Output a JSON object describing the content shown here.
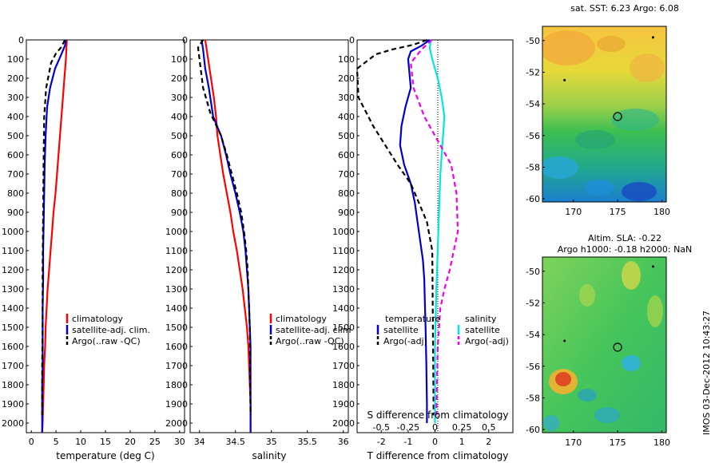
{
  "colors": {
    "climatology": "#ff0000",
    "satellite": "#0000cc",
    "argo": "#000000",
    "satellite_salinity": "#00e5e5",
    "argo_salinity_adj": "#ee00ee"
  },
  "chart_data": [
    {
      "type": "line",
      "id": "temperature",
      "xlabel": "temperature (deg C)",
      "xlim": [
        -1,
        31
      ],
      "ylim": [
        0,
        2050
      ],
      "xticks": [
        "0",
        "5",
        "10",
        "15",
        "20",
        "25",
        "30"
      ],
      "yticks": [
        "0",
        "100",
        "200",
        "300",
        "400",
        "500",
        "600",
        "700",
        "800",
        "900",
        "1000",
        "1100",
        "1200",
        "1300",
        "1400",
        "1500",
        "1600",
        "1700",
        "1800",
        "1900",
        "2000"
      ],
      "legend": [
        "climatology",
        "satellite-adj. clim.",
        "Argo(..raw -QC)"
      ],
      "series": [
        {
          "name": "climatology",
          "style": "solid",
          "color": "#ff0000",
          "x": [
            7.2,
            7.0,
            6.7,
            6.4,
            6.1,
            5.8,
            5.5,
            5.2,
            4.9,
            4.5,
            4.2,
            3.9,
            3.6,
            3.3,
            3.1,
            2.9,
            2.8,
            2.6,
            2.5,
            2.4,
            2.3,
            2.2
          ],
          "y": [
            0,
            100,
            200,
            300,
            400,
            500,
            600,
            700,
            800,
            900,
            1000,
            1100,
            1200,
            1300,
            1400,
            1500,
            1600,
            1700,
            1800,
            1900,
            2000,
            2050
          ]
        },
        {
          "name": "satellite-adj. clim.",
          "style": "solid",
          "color": "#0000cc",
          "x": [
            7.0,
            6.8,
            6.0,
            4.8,
            3.8,
            3.2,
            2.9,
            2.7,
            2.6,
            2.5,
            2.4,
            2.4,
            2.3,
            2.3,
            2.3,
            2.2,
            2.2,
            2.2,
            2.2,
            2.2
          ],
          "y": [
            0,
            30,
            80,
            150,
            250,
            350,
            500,
            650,
            800,
            950,
            1100,
            1250,
            1400,
            1550,
            1700,
            1800,
            1900,
            2000,
            2030,
            2050
          ]
        },
        {
          "name": "Argo(..raw -QC)",
          "style": "dashed",
          "color": "#000000",
          "x": [
            6.8,
            6.0,
            5.0,
            4.0,
            3.0,
            2.6,
            2.5,
            2.4,
            2.3,
            2.3,
            2.2,
            2.2,
            2.2
          ],
          "y": [
            0,
            40,
            70,
            120,
            250,
            400,
            600,
            900,
            1200,
            1500,
            1700,
            1800,
            1960
          ]
        }
      ]
    },
    {
      "type": "line",
      "id": "salinity",
      "xlabel": "salinity",
      "xlim": [
        33.87,
        36.07
      ],
      "ylim": [
        0,
        2050
      ],
      "xticks": [
        "34",
        "34.5",
        "35",
        "35.5",
        "36"
      ],
      "yticks": [
        "0",
        "100",
        "200",
        "300",
        "400",
        "500",
        "600",
        "700",
        "800",
        "900",
        "1000",
        "1100",
        "1200",
        "1300",
        "1400",
        "1500",
        "1600",
        "1700",
        "1800",
        "1900",
        "2000"
      ],
      "legend": [
        "climatology",
        "satellite-adj. clim",
        "Argo(..raw -QC)"
      ],
      "series": [
        {
          "name": "climatology",
          "style": "solid",
          "color": "#ff0000",
          "x": [
            34.08,
            34.12,
            34.16,
            34.2,
            34.23,
            34.25,
            34.29,
            34.33,
            34.38,
            34.43,
            34.47,
            34.52,
            34.56,
            34.6,
            34.63,
            34.66,
            34.68,
            34.69,
            34.7,
            34.71,
            34.71
          ],
          "y": [
            0,
            100,
            200,
            300,
            400,
            500,
            600,
            700,
            800,
            900,
            1000,
            1100,
            1200,
            1300,
            1400,
            1500,
            1600,
            1700,
            1800,
            1900,
            2050
          ]
        },
        {
          "name": "satellite-adj. clim",
          "style": "solid",
          "color": "#0000cc",
          "x": [
            34.03,
            34.05,
            34.08,
            34.13,
            34.19,
            34.3,
            34.37,
            34.43,
            34.5,
            34.56,
            34.61,
            34.64,
            34.66,
            34.68,
            34.69,
            34.7,
            34.71,
            34.71,
            34.71
          ],
          "y": [
            0,
            50,
            150,
            250,
            400,
            500,
            600,
            700,
            800,
            900,
            1000,
            1100,
            1200,
            1300,
            1400,
            1500,
            1600,
            1800,
            2050
          ]
        },
        {
          "name": "Argo(..raw -QC)",
          "style": "dashed",
          "color": "#000000",
          "x": [
            34.05,
            33.98,
            34.0,
            34.05,
            34.15,
            34.3,
            34.38,
            34.45,
            34.52,
            34.58,
            34.62,
            34.65,
            34.67,
            34.68,
            34.69,
            34.7,
            34.71
          ],
          "y": [
            0,
            40,
            100,
            250,
            380,
            500,
            600,
            700,
            800,
            900,
            1000,
            1100,
            1200,
            1300,
            1400,
            1500,
            1960
          ]
        }
      ]
    },
    {
      "type": "line",
      "id": "difference",
      "xlabel": "T difference from climatology",
      "x2label": "S difference from climatology",
      "xlim": [
        -2.9,
        2.9
      ],
      "ylim": [
        0,
        2050
      ],
      "xticks": [
        "-2",
        "-1",
        "0",
        "1",
        "2"
      ],
      "x2ticks": [
        "-0.5",
        "-0.25",
        "0",
        "0.25",
        "0.5"
      ],
      "x2_scale": 0.25,
      "yticks": [
        "0",
        "100",
        "200",
        "300",
        "400",
        "500",
        "600",
        "700",
        "800",
        "900",
        "1000",
        "1100",
        "1200",
        "1300",
        "1400",
        "1500",
        "1600",
        "1700",
        "1800",
        "1900",
        "2000"
      ],
      "legend_temperature_title": "temperature",
      "legend_salinity_title": "salinity",
      "legend_temperature": [
        "satellite",
        "Argo(-adj)"
      ],
      "legend_salinity": [
        "satellite",
        "Argo(-adj)"
      ],
      "series": [
        {
          "name": "temperature satellite",
          "style": "solid",
          "color": "#0000cc",
          "x": [
            -0.2,
            -0.5,
            -0.9,
            -1.0,
            -0.9,
            -1.1,
            -1.25,
            -1.3,
            -1.15,
            -0.9,
            -0.75,
            -0.65,
            -0.55,
            -0.45,
            -0.4,
            -0.38,
            -0.35,
            -0.32,
            -0.3,
            -0.3
          ],
          "y": [
            0,
            30,
            60,
            100,
            250,
            350,
            450,
            550,
            650,
            750,
            850,
            950,
            1050,
            1150,
            1250,
            1350,
            1500,
            1700,
            1900,
            2000
          ]
        },
        {
          "name": "temperature Argo(-adj)",
          "style": "dashed",
          "color": "#000000",
          "x": [
            -0.3,
            -0.8,
            -1.6,
            -2.2,
            -2.9,
            -2.85,
            -2.3,
            -1.85,
            -1.4,
            -0.9,
            -0.6,
            -0.3,
            -0.1,
            -0.05
          ],
          "y": [
            0,
            25,
            50,
            75,
            150,
            300,
            450,
            550,
            650,
            750,
            850,
            950,
            1100,
            1960
          ]
        },
        {
          "name": "salinity satellite",
          "style": "solid",
          "color": "#00e5e5",
          "x": [
            -0.15,
            -0.2,
            -0.1,
            0.1,
            0.25,
            0.35,
            0.3,
            0.2,
            0.15,
            0.1,
            0.05,
            0.0,
            0.0
          ],
          "y": [
            0,
            40,
            100,
            200,
            300,
            400,
            500,
            700,
            900,
            1100,
            1300,
            1600,
            2000
          ]
        },
        {
          "name": "salinity Argo(-adj)",
          "style": "dashed",
          "color": "#ee00ee",
          "x": [
            -0.12,
            -0.5,
            -0.9,
            -0.8,
            -0.4,
            0.2,
            0.6,
            0.8,
            0.85,
            0.7,
            0.55,
            0.35,
            0.2,
            0.1,
            0.05
          ],
          "y": [
            0,
            50,
            120,
            250,
            400,
            550,
            650,
            800,
            1000,
            1100,
            1200,
            1300,
            1400,
            1600,
            1960
          ]
        }
      ]
    },
    {
      "type": "heatmap",
      "id": "sst-map",
      "title": "sat. SST: 6.23 Argo: 6.08",
      "xlim": [
        166.5,
        180.5
      ],
      "ylim": [
        -60.2,
        -49.1
      ],
      "xticks": [
        "170",
        "175",
        "180"
      ],
      "yticks": [
        "-50",
        "-52",
        "-54",
        "-56",
        "-58",
        "-60"
      ],
      "float_position": [
        175,
        -54.8
      ],
      "extra_markers": [
        [
          169,
          -52.5
        ],
        [
          179,
          -49.8
        ]
      ]
    },
    {
      "type": "heatmap",
      "id": "sla-map",
      "title": "Altim. SLA: -0.22",
      "subtitle": "Argo h1000: -0.18 h2000: NaN",
      "xlim": [
        166.5,
        180.5
      ],
      "ylim": [
        -60.2,
        -49.1
      ],
      "xticks": [
        "170",
        "175",
        "180"
      ],
      "yticks": [
        "-50",
        "-52",
        "-54",
        "-56",
        "-58",
        "-60"
      ],
      "float_position": [
        175,
        -54.8
      ],
      "extra_markers": [
        [
          169,
          -54.4
        ],
        [
          179,
          -49.7
        ]
      ]
    }
  ],
  "footer": "IMOS 03-Dec-2012 10:43:27"
}
